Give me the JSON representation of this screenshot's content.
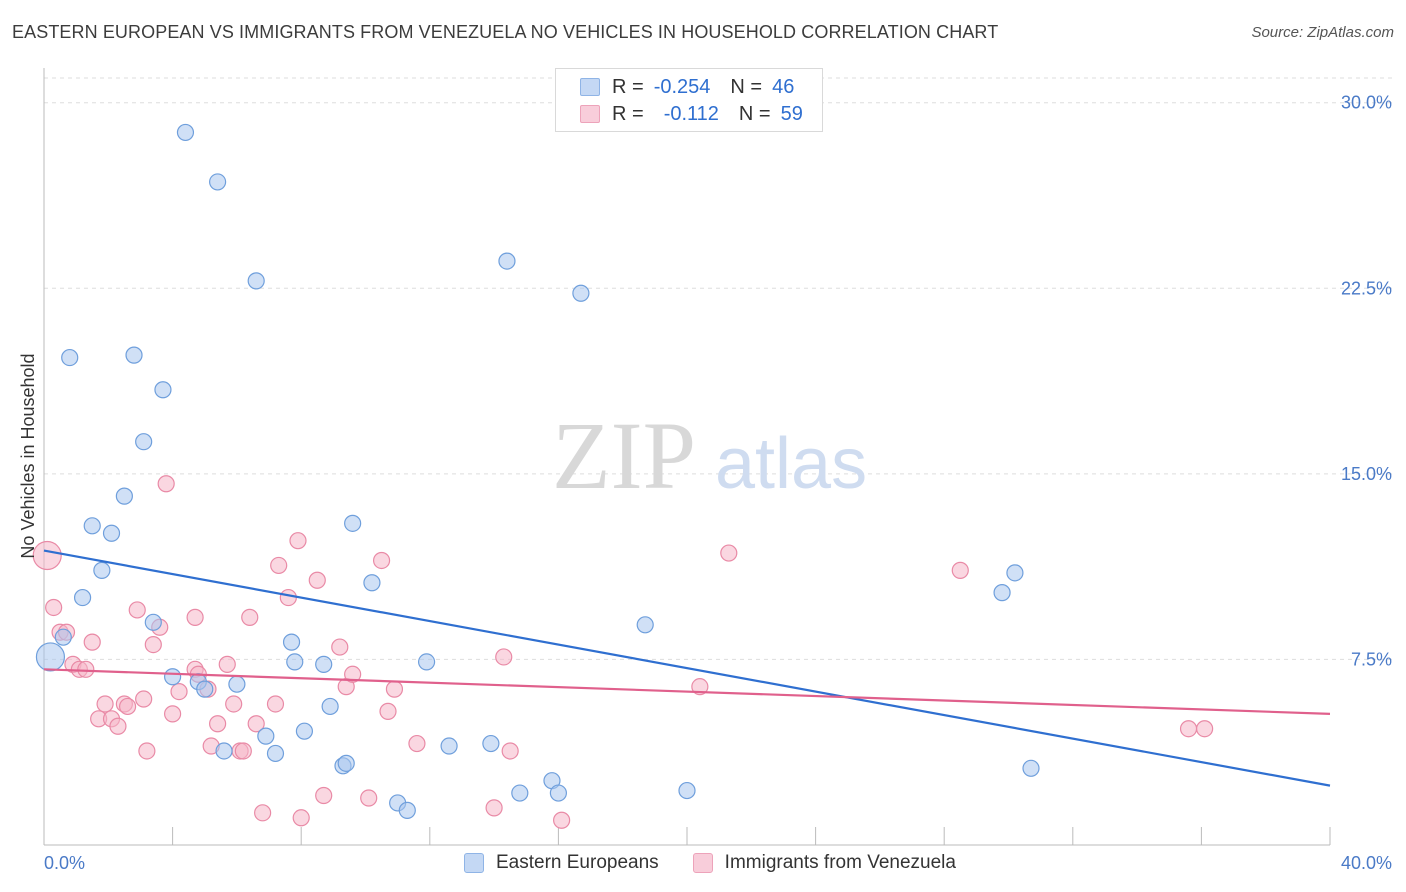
{
  "header": {
    "title": "EASTERN EUROPEAN VS IMMIGRANTS FROM VENEZUELA NO VEHICLES IN HOUSEHOLD CORRELATION CHART",
    "source": "Source: ZipAtlas.com"
  },
  "watermark": {
    "zip": "ZIP",
    "atlas": "atlas"
  },
  "legend": {
    "rows": [
      {
        "r_label": "R =",
        "r_value": "-0.254",
        "n_label": "N =",
        "n_value": "46"
      },
      {
        "r_label": "R =",
        "r_value": "-0.112",
        "n_label": "N =",
        "n_value": "59"
      }
    ]
  },
  "colors": {
    "blue_fill": "#a9c6ee",
    "blue_stroke": "#6f9fdc",
    "blue_line": "#2f6fd0",
    "pink_fill": "#f5b7c9",
    "pink_stroke": "#e98aa6",
    "pink_line": "#e0608c",
    "tick_text": "#4a7ac7",
    "grid": "#dddddd"
  },
  "chart_data": {
    "type": "scatter",
    "title": "EASTERN EUROPEAN VS IMMIGRANTS FROM VENEZUELA NO VEHICLES IN HOUSEHOLD CORRELATION CHART",
    "xlabel": "",
    "ylabel": "No Vehicles in Household",
    "xlim": [
      0,
      40
    ],
    "ylim": [
      0,
      31
    ],
    "x_tick_labels": [
      "0.0%",
      "40.0%"
    ],
    "y_ticks": [
      {
        "value": 7.5,
        "label": "7.5%"
      },
      {
        "value": 15.0,
        "label": "15.0%"
      },
      {
        "value": 22.5,
        "label": "22.5%"
      },
      {
        "value": 30.0,
        "label": "30.0%"
      }
    ],
    "grid": "horizontal dashed",
    "legend_position": "top-center",
    "series": [
      {
        "name": "Eastern Europeans",
        "color": "#a9c6ee",
        "r": -0.254,
        "n": 46,
        "trend": {
          "x": [
            0,
            40
          ],
          "y": [
            11.9,
            2.4
          ]
        },
        "points": [
          [
            0.2,
            7.6
          ],
          [
            0.6,
            8.4
          ],
          [
            0.8,
            19.7
          ],
          [
            1.2,
            10.0
          ],
          [
            1.5,
            12.9
          ],
          [
            1.8,
            11.1
          ],
          [
            2.1,
            12.6
          ],
          [
            2.5,
            14.1
          ],
          [
            2.8,
            19.8
          ],
          [
            3.1,
            16.3
          ],
          [
            3.4,
            9.0
          ],
          [
            3.7,
            18.4
          ],
          [
            4.0,
            6.8
          ],
          [
            4.4,
            28.8
          ],
          [
            4.8,
            6.6
          ],
          [
            5.0,
            6.3
          ],
          [
            5.4,
            26.8
          ],
          [
            5.6,
            3.8
          ],
          [
            6.0,
            6.5
          ],
          [
            6.6,
            22.8
          ],
          [
            6.9,
            4.4
          ],
          [
            7.2,
            3.7
          ],
          [
            7.7,
            8.2
          ],
          [
            7.8,
            7.4
          ],
          [
            8.1,
            4.6
          ],
          [
            8.7,
            7.3
          ],
          [
            8.9,
            5.6
          ],
          [
            9.3,
            3.2
          ],
          [
            9.4,
            3.3
          ],
          [
            9.6,
            13.0
          ],
          [
            10.2,
            10.6
          ],
          [
            11.0,
            1.7
          ],
          [
            11.3,
            1.4
          ],
          [
            11.9,
            7.4
          ],
          [
            12.6,
            4.0
          ],
          [
            13.9,
            4.1
          ],
          [
            14.4,
            23.6
          ],
          [
            14.8,
            2.1
          ],
          [
            15.8,
            2.6
          ],
          [
            16.0,
            2.1
          ],
          [
            16.7,
            22.3
          ],
          [
            18.7,
            8.9
          ],
          [
            20.0,
            2.2
          ],
          [
            29.8,
            10.2
          ],
          [
            30.2,
            11.0
          ],
          [
            30.7,
            3.1
          ]
        ]
      },
      {
        "name": "Immigrants from Venezuela",
        "color": "#f5b7c9",
        "r": -0.112,
        "n": 59,
        "trend": {
          "x": [
            0,
            40
          ],
          "y": [
            7.1,
            5.3
          ]
        },
        "points": [
          [
            0.1,
            11.7
          ],
          [
            0.3,
            9.6
          ],
          [
            0.5,
            8.6
          ],
          [
            0.7,
            8.6
          ],
          [
            0.9,
            7.3
          ],
          [
            1.1,
            7.1
          ],
          [
            1.3,
            7.1
          ],
          [
            1.5,
            8.2
          ],
          [
            1.7,
            5.1
          ],
          [
            1.9,
            5.7
          ],
          [
            2.1,
            5.1
          ],
          [
            2.3,
            4.8
          ],
          [
            2.5,
            5.7
          ],
          [
            2.6,
            5.6
          ],
          [
            2.9,
            9.5
          ],
          [
            3.1,
            5.9
          ],
          [
            3.2,
            3.8
          ],
          [
            3.4,
            8.1
          ],
          [
            3.6,
            8.8
          ],
          [
            3.8,
            14.6
          ],
          [
            4.0,
            5.3
          ],
          [
            4.2,
            6.2
          ],
          [
            4.7,
            7.1
          ],
          [
            4.7,
            9.2
          ],
          [
            4.8,
            6.9
          ],
          [
            5.1,
            6.3
          ],
          [
            5.2,
            4.0
          ],
          [
            5.4,
            4.9
          ],
          [
            5.7,
            7.3
          ],
          [
            5.9,
            5.7
          ],
          [
            6.1,
            3.8
          ],
          [
            6.2,
            3.8
          ],
          [
            6.4,
            9.2
          ],
          [
            6.6,
            4.9
          ],
          [
            6.8,
            1.3
          ],
          [
            7.2,
            5.7
          ],
          [
            7.3,
            11.3
          ],
          [
            7.6,
            10.0
          ],
          [
            7.9,
            12.3
          ],
          [
            8.0,
            1.1
          ],
          [
            8.5,
            10.7
          ],
          [
            8.7,
            2.0
          ],
          [
            9.2,
            8.0
          ],
          [
            9.4,
            6.4
          ],
          [
            9.6,
            6.9
          ],
          [
            10.1,
            1.9
          ],
          [
            10.5,
            11.5
          ],
          [
            10.7,
            5.4
          ],
          [
            10.9,
            6.3
          ],
          [
            11.6,
            4.1
          ],
          [
            14.0,
            1.5
          ],
          [
            14.3,
            7.6
          ],
          [
            14.5,
            3.8
          ],
          [
            16.1,
            1.0
          ],
          [
            20.4,
            6.4
          ],
          [
            21.3,
            11.8
          ],
          [
            28.5,
            11.1
          ],
          [
            35.6,
            4.7
          ],
          [
            36.1,
            4.7
          ]
        ]
      }
    ]
  },
  "bottom_legend": {
    "items": [
      {
        "label": "Eastern Europeans"
      },
      {
        "label": "Immigrants from Venezuela"
      }
    ]
  }
}
